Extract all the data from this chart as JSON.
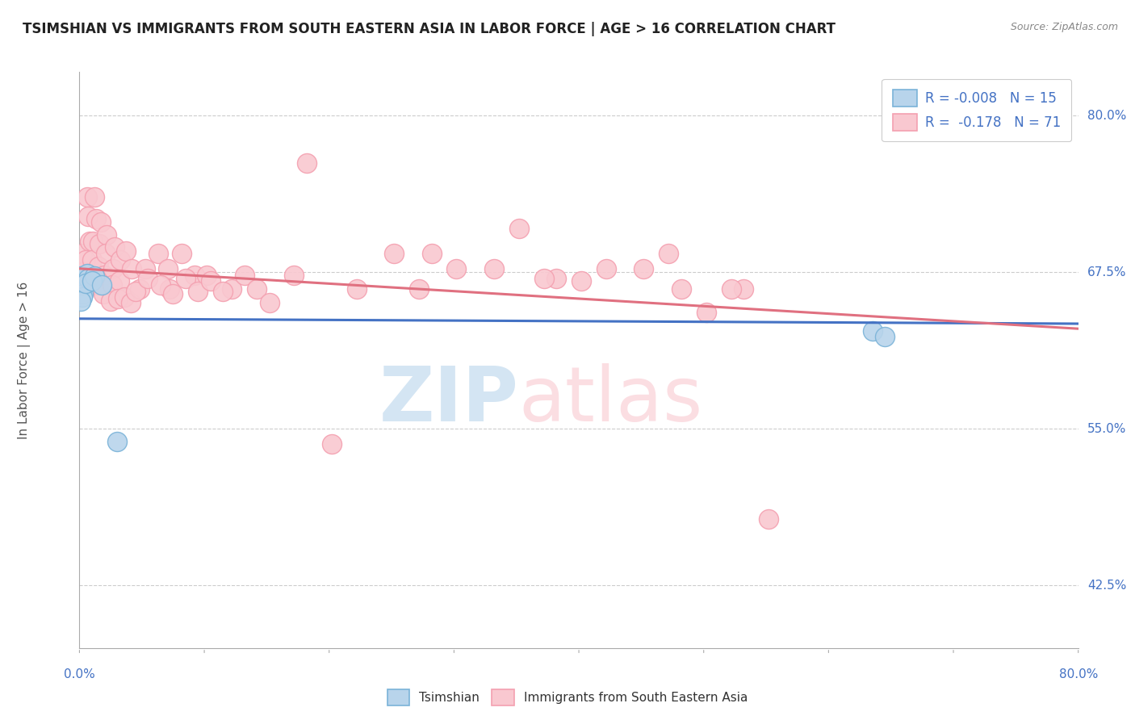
{
  "title": "TSIMSHIAN VS IMMIGRANTS FROM SOUTH EASTERN ASIA IN LABOR FORCE | AGE > 16 CORRELATION CHART",
  "source_text": "Source: ZipAtlas.com",
  "ylabel": "In Labor Force | Age > 16",
  "xlim": [
    0.0,
    0.8
  ],
  "ylim": [
    0.375,
    0.835
  ],
  "yticks": [
    0.425,
    0.55,
    0.675,
    0.8
  ],
  "ytick_labels": [
    "42.5%",
    "55.0%",
    "67.5%",
    "80.0%"
  ],
  "background_color": "#ffffff",
  "grid_color": "#cccccc",
  "blue_color": "#7ab3d8",
  "blue_fill": "#b8d4eb",
  "pink_color": "#f4a0b0",
  "pink_fill": "#f9c8d0",
  "legend_r1": "R = -0.008",
  "legend_n1": "N = 15",
  "legend_r2": "R =  -0.178",
  "legend_n2": "N = 71",
  "blue_scatter_x": [
    0.001,
    0.002,
    0.001,
    0.003,
    0.002,
    0.001,
    0.006,
    0.007,
    0.005,
    0.012,
    0.01,
    0.018,
    0.635,
    0.645,
    0.03
  ],
  "blue_scatter_y": [
    0.672,
    0.668,
    0.664,
    0.658,
    0.655,
    0.652,
    0.674,
    0.67,
    0.666,
    0.672,
    0.668,
    0.665,
    0.628,
    0.624,
    0.54
  ],
  "pink_scatter_x": [
    0.002,
    0.003,
    0.001,
    0.006,
    0.007,
    0.008,
    0.005,
    0.012,
    0.013,
    0.011,
    0.01,
    0.017,
    0.016,
    0.015,
    0.014,
    0.022,
    0.021,
    0.02,
    0.019,
    0.028,
    0.027,
    0.026,
    0.025,
    0.033,
    0.032,
    0.031,
    0.037,
    0.036,
    0.042,
    0.041,
    0.048,
    0.053,
    0.063,
    0.072,
    0.071,
    0.082,
    0.092,
    0.102,
    0.122,
    0.132,
    0.142,
    0.152,
    0.172,
    0.182,
    0.202,
    0.222,
    0.252,
    0.272,
    0.302,
    0.352,
    0.382,
    0.402,
    0.452,
    0.482,
    0.502,
    0.532,
    0.552,
    0.282,
    0.332,
    0.372,
    0.422,
    0.472,
    0.522,
    0.045,
    0.055,
    0.065,
    0.075,
    0.085,
    0.095,
    0.105,
    0.115
  ],
  "pink_scatter_y": [
    0.69,
    0.675,
    0.665,
    0.735,
    0.72,
    0.7,
    0.685,
    0.735,
    0.718,
    0.7,
    0.685,
    0.715,
    0.698,
    0.68,
    0.665,
    0.705,
    0.69,
    0.673,
    0.658,
    0.695,
    0.678,
    0.665,
    0.652,
    0.685,
    0.668,
    0.654,
    0.692,
    0.655,
    0.678,
    0.651,
    0.662,
    0.678,
    0.69,
    0.662,
    0.678,
    0.69,
    0.673,
    0.673,
    0.662,
    0.673,
    0.662,
    0.651,
    0.673,
    0.762,
    0.538,
    0.662,
    0.69,
    0.662,
    0.678,
    0.71,
    0.67,
    0.668,
    0.678,
    0.662,
    0.643,
    0.662,
    0.478,
    0.69,
    0.678,
    0.67,
    0.678,
    0.69,
    0.662,
    0.66,
    0.67,
    0.665,
    0.658,
    0.67,
    0.66,
    0.668,
    0.66
  ],
  "blue_line_x": [
    0.0,
    0.8
  ],
  "blue_line_y_start": 0.638,
  "blue_line_y_end": 0.634,
  "pink_line_x": [
    0.0,
    0.8
  ],
  "pink_line_y_start": 0.678,
  "pink_line_y_end": 0.63,
  "title_color": "#222222",
  "axis_label_color": "#555555",
  "tick_color": "#4472C4",
  "legend_text_color": "#4472C4"
}
